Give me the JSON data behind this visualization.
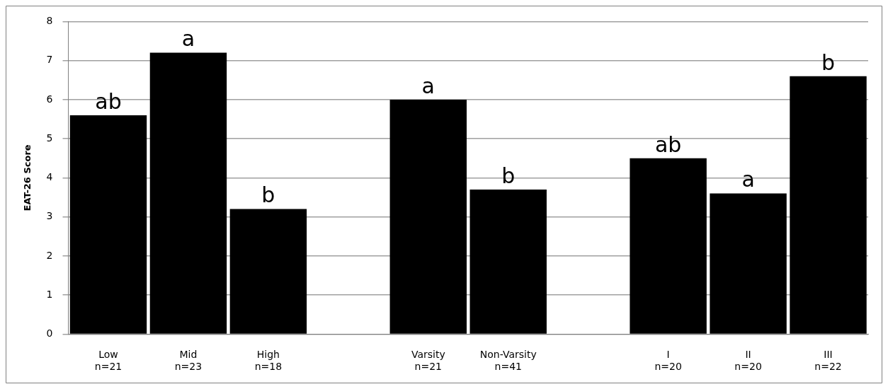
{
  "chart_data": {
    "type": "bar",
    "ylabel": "EAT-26 Score",
    "categories": [
      "Low\nn=21",
      "Mid\nn=23",
      "High\nn=18",
      null,
      "Varsity\nn=21",
      "Non-Varsity\nn=41",
      null,
      "I\nn=20",
      "II\nn=20",
      "III\nn=22"
    ],
    "values": [
      5.6,
      7.2,
      3.2,
      null,
      6.0,
      3.7,
      null,
      4.5,
      3.6,
      6.6
    ],
    "color": "#000000",
    "ylim": [
      0,
      8
    ],
    "yticks": [
      0,
      1,
      2,
      3,
      4,
      5,
      6,
      7,
      8
    ],
    "grid": "y",
    "legend": false,
    "annotations": [
      {
        "text": "ab",
        "x": "Low\nn=21",
        "y": 5.6
      },
      {
        "text": "a",
        "x": "Mid\nn=23",
        "y": 7.2
      },
      {
        "text": "b",
        "x": "High\nn=18",
        "y": 3.2
      },
      {
        "text": "a",
        "x": "Varsity\nn=21",
        "y": 6.0
      },
      {
        "text": "b",
        "x": "Non-Varsity\nn=41",
        "y": 3.7
      },
      {
        "text": "ab",
        "x": "I\nn=20",
        "y": 4.5
      },
      {
        "text": "a",
        "x": "II\nn=20",
        "y": 3.6
      },
      {
        "text": "b",
        "x": "III\nn=22",
        "y": 6.6
      }
    ]
  }
}
